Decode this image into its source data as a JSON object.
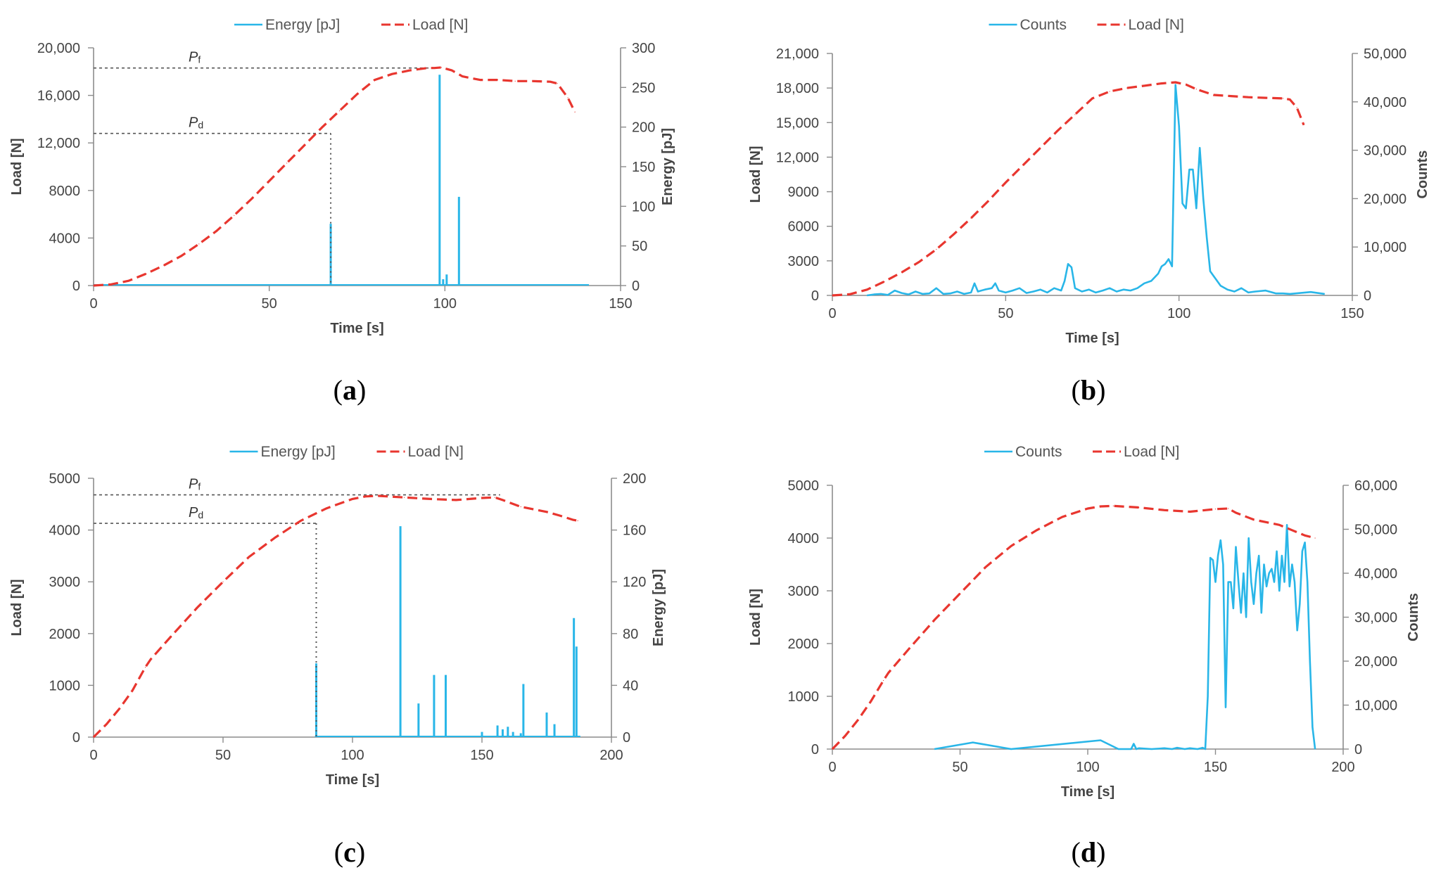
{
  "figure": {
    "colors": {
      "energy": "#29b6e8",
      "counts": "#29b6e8",
      "load": "#e8362f",
      "axis": "#8c8c8c",
      "ref": "#555555"
    }
  },
  "chart_data": [
    {
      "id": "a",
      "panel_label": "a",
      "type": "line",
      "xlabel": "Time [s]",
      "ylabel": "Load [N]",
      "y2label": "Energy [pJ]",
      "xlim": [
        0,
        150
      ],
      "ylim": [
        0,
        20000
      ],
      "y2lim": [
        0,
        300
      ],
      "xticks": [
        0,
        50,
        100,
        150
      ],
      "yticks": [
        0,
        4000,
        8000,
        12000,
        16000,
        20000
      ],
      "y2ticks": [
        0,
        50,
        100,
        150,
        200,
        250,
        300
      ],
      "xtick_labels": [
        "0",
        "50",
        "100",
        "150"
      ],
      "ytick_labels": [
        "0",
        "4000",
        "8000",
        "12,000",
        "16,000",
        "20,000"
      ],
      "y2tick_labels": [
        "0",
        "50",
        "100",
        "150",
        "200",
        "250",
        "300"
      ],
      "legend": [
        "Energy [pJ]",
        "Load [N]"
      ],
      "legend_position": "top-center",
      "secondary_kind": "spikes",
      "series": [
        {
          "name": "Energy [pJ]",
          "axis": "right",
          "style": "solid",
          "baseline": {
            "x0": 0,
            "x1": 141
          },
          "x": [
            67.5,
            98.5,
            99.5,
            100.5,
            104
          ],
          "values": [
            78,
            266,
            8,
            14,
            112
          ]
        },
        {
          "name": "Load [N]",
          "axis": "left",
          "style": "dashed",
          "x": [
            0,
            5,
            10,
            15,
            20,
            25,
            30,
            35,
            40,
            45,
            50,
            55,
            60,
            65,
            70,
            75,
            80,
            85,
            90,
            95,
            97,
            99,
            102,
            105,
            110,
            115,
            120,
            125,
            130,
            132,
            135,
            137
          ],
          "values": [
            0,
            100,
            400,
            1000,
            1700,
            2500,
            3500,
            4600,
            5900,
            7300,
            8800,
            10300,
            11800,
            13300,
            14700,
            16100,
            17300,
            17800,
            18100,
            18300,
            18300,
            18350,
            18100,
            17600,
            17300,
            17300,
            17200,
            17200,
            17150,
            17000,
            15800,
            14600
          ]
        }
      ],
      "annotations": [
        {
          "label": "P",
          "sub": "f",
          "y": 18300,
          "x_end": 98.5,
          "drop": false
        },
        {
          "label": "P",
          "sub": "d",
          "y": 12800,
          "x_end": 67.5,
          "drop": true
        }
      ]
    },
    {
      "id": "b",
      "panel_label": "b",
      "type": "line",
      "xlabel": "Time [s]",
      "ylabel": "Load [N]",
      "y2label": "Counts",
      "xlim": [
        0,
        150
      ],
      "ylim": [
        0,
        21000
      ],
      "y2lim": [
        0,
        50000
      ],
      "xticks": [
        0,
        50,
        100,
        150
      ],
      "yticks": [
        0,
        3000,
        6000,
        9000,
        12000,
        15000,
        18000,
        21000
      ],
      "y2ticks": [
        0,
        10000,
        20000,
        30000,
        40000,
        50000
      ],
      "xtick_labels": [
        "0",
        "50",
        "100",
        "150"
      ],
      "ytick_labels": [
        "0",
        "3000",
        "6000",
        "9000",
        "12,000",
        "15,000",
        "18,000",
        "21,000"
      ],
      "y2tick_labels": [
        "0",
        "10,000",
        "20,000",
        "30,000",
        "40,000",
        "50,000"
      ],
      "legend": [
        "Counts",
        "Load [N]"
      ],
      "legend_position": "top-center",
      "secondary_kind": "line",
      "series": [
        {
          "name": "Counts",
          "axis": "right",
          "style": "solid",
          "x": [
            10,
            12,
            14,
            16,
            18,
            20,
            22,
            24,
            26,
            28,
            30,
            32,
            34,
            36,
            38,
            40,
            41,
            42,
            44,
            46,
            47,
            48,
            50,
            52,
            54,
            56,
            58,
            60,
            62,
            64,
            66,
            67,
            68,
            69,
            70,
            72,
            74,
            76,
            78,
            80,
            82,
            84,
            86,
            88,
            90,
            92,
            94,
            95,
            96,
            97,
            98,
            99,
            100,
            101,
            102,
            103,
            104,
            105,
            106,
            107,
            108,
            109,
            110,
            112,
            114,
            116,
            118,
            120,
            122,
            125,
            128,
            130,
            132,
            135,
            138,
            142
          ],
          "values": [
            0,
            200,
            300,
            100,
            1000,
            500,
            200,
            800,
            300,
            400,
            1500,
            300,
            400,
            800,
            300,
            600,
            2500,
            800,
            1200,
            1500,
            2500,
            1000,
            600,
            1000,
            1500,
            500,
            800,
            1200,
            600,
            1500,
            1000,
            3000,
            6500,
            5800,
            1500,
            800,
            1200,
            600,
            1000,
            1500,
            800,
            1200,
            1000,
            1500,
            2500,
            3000,
            4500,
            6000,
            6500,
            7500,
            6000,
            43500,
            35000,
            19000,
            18000,
            26000,
            26000,
            18000,
            30500,
            20000,
            12000,
            5000,
            4000,
            2000,
            1200,
            800,
            1500,
            600,
            800,
            1000,
            400,
            400,
            300,
            500,
            700,
            300
          ]
        },
        {
          "name": "Load [N]",
          "axis": "left",
          "style": "dashed",
          "x": [
            0,
            5,
            10,
            15,
            20,
            25,
            30,
            35,
            40,
            45,
            50,
            55,
            60,
            65,
            70,
            75,
            80,
            85,
            90,
            95,
            99,
            102,
            105,
            110,
            115,
            120,
            125,
            130,
            132,
            134,
            136
          ],
          "values": [
            0,
            100,
            500,
            1200,
            2000,
            2900,
            4000,
            5300,
            6700,
            8200,
            9800,
            11300,
            12800,
            14300,
            15700,
            17100,
            17700,
            18000,
            18200,
            18400,
            18500,
            18300,
            17900,
            17400,
            17300,
            17200,
            17150,
            17100,
            17000,
            16300,
            14800
          ]
        }
      ]
    },
    {
      "id": "c",
      "panel_label": "c",
      "type": "line",
      "xlabel": "Time [s]",
      "ylabel": "Load [N]",
      "y2label": "Energy [pJ]",
      "xlim": [
        0,
        200
      ],
      "ylim": [
        0,
        5000
      ],
      "y2lim": [
        0,
        200
      ],
      "xticks": [
        0,
        50,
        100,
        150,
        200
      ],
      "yticks": [
        0,
        1000,
        2000,
        3000,
        4000,
        5000
      ],
      "y2ticks": [
        0,
        40,
        80,
        120,
        160,
        200
      ],
      "xtick_labels": [
        "0",
        "50",
        "100",
        "150",
        "200"
      ],
      "ytick_labels": [
        "0",
        "1000",
        "2000",
        "3000",
        "4000",
        "5000"
      ],
      "y2tick_labels": [
        "0",
        "40",
        "80",
        "120",
        "160",
        "200"
      ],
      "legend": [
        "Energy [pJ]",
        "Load [N]"
      ],
      "legend_position": "top-center",
      "secondary_kind": "spikes",
      "series": [
        {
          "name": "Energy [pJ]",
          "axis": "right",
          "style": "solid",
          "baseline": {
            "x0": 85.5,
            "x1": 188
          },
          "x": [
            86,
            118.5,
            125.5,
            131.5,
            136,
            150,
            156,
            158,
            160,
            162,
            165,
            166,
            175,
            178,
            185.5,
            186.5
          ],
          "values": [
            57,
            163,
            26,
            48,
            48,
            4,
            9,
            6,
            8,
            4,
            3,
            41,
            19,
            10,
            92,
            70
          ]
        },
        {
          "name": "Load [N]",
          "axis": "left",
          "style": "dashed",
          "x": [
            0,
            5,
            10,
            15,
            20,
            22,
            30,
            40,
            50,
            60,
            70,
            80,
            90,
            100,
            105,
            110,
            120,
            130,
            140,
            150,
            155,
            158,
            165,
            175,
            180,
            185,
            187
          ],
          "values": [
            0,
            250,
            550,
            900,
            1350,
            1500,
            1950,
            2500,
            3000,
            3480,
            3850,
            4180,
            4420,
            4600,
            4650,
            4660,
            4630,
            4600,
            4580,
            4620,
            4630,
            4580,
            4450,
            4350,
            4280,
            4200,
            4180
          ]
        }
      ],
      "annotations": [
        {
          "label": "P",
          "sub": "f",
          "y": 4680,
          "x_end": 157,
          "drop": false
        },
        {
          "label": "P",
          "sub": "d",
          "y": 4130,
          "x_end": 86,
          "drop": true
        }
      ]
    },
    {
      "id": "d",
      "panel_label": "d",
      "type": "line",
      "xlabel": "Time [s]",
      "ylabel": "Load [N]",
      "y2label": "Counts",
      "xlim": [
        0,
        200
      ],
      "ylim": [
        0,
        5000
      ],
      "y2lim": [
        0,
        60000
      ],
      "xticks": [
        0,
        50,
        100,
        150,
        200
      ],
      "yticks": [
        0,
        1000,
        2000,
        3000,
        4000,
        5000
      ],
      "y2ticks": [
        0,
        10000,
        20000,
        30000,
        40000,
        50000,
        60000
      ],
      "xtick_labels": [
        "0",
        "50",
        "100",
        "150",
        "200"
      ],
      "ytick_labels": [
        "0",
        "1000",
        "2000",
        "3000",
        "4000",
        "5000"
      ],
      "y2tick_labels": [
        "0",
        "10,000",
        "20,000",
        "30,000",
        "40,000",
        "50,000",
        "60,000"
      ],
      "legend": [
        "Counts",
        "Load [N]"
      ],
      "legend_position": "top-center",
      "secondary_kind": "line",
      "series": [
        {
          "name": "Counts",
          "axis": "right",
          "style": "solid",
          "x": [
            40,
            55,
            70,
            105,
            112,
            117,
            118,
            119,
            120,
            125,
            130,
            133,
            135,
            138,
            140,
            143,
            145,
            146,
            147,
            148,
            149,
            150,
            151,
            152,
            153,
            154,
            155,
            156,
            157,
            158,
            159,
            160,
            161,
            162,
            163,
            164,
            165,
            166,
            167,
            168,
            169,
            170,
            171,
            172,
            173,
            174,
            175,
            176,
            177,
            178,
            179,
            180,
            181,
            182,
            183,
            184,
            185,
            186,
            187,
            188,
            189
          ],
          "values": [
            0,
            1500,
            0,
            2000,
            0,
            0,
            1200,
            0,
            200,
            0,
            200,
            0,
            300,
            0,
            200,
            0,
            300,
            0,
            12000,
            43500,
            43000,
            38000,
            44000,
            47500,
            42000,
            9500,
            38000,
            38000,
            32000,
            46000,
            38000,
            31000,
            40000,
            30000,
            48000,
            38000,
            33000,
            40000,
            44000,
            31000,
            42000,
            37000,
            40000,
            41000,
            38000,
            45000,
            36000,
            44000,
            38000,
            51000,
            37000,
            42000,
            38000,
            27000,
            33000,
            45000,
            47000,
            38000,
            20000,
            5000,
            0
          ]
        },
        {
          "name": "Load [N]",
          "axis": "left",
          "style": "dashed",
          "x": [
            0,
            5,
            10,
            15,
            20,
            22,
            30,
            40,
            50,
            60,
            70,
            80,
            90,
            100,
            105,
            110,
            120,
            130,
            140,
            150,
            155,
            158,
            165,
            175,
            180,
            185,
            189
          ],
          "values": [
            0,
            250,
            550,
            900,
            1300,
            1450,
            1900,
            2450,
            2950,
            3450,
            3850,
            4150,
            4400,
            4560,
            4600,
            4610,
            4580,
            4530,
            4500,
            4550,
            4560,
            4480,
            4350,
            4250,
            4150,
            4050,
            4000
          ]
        }
      ]
    }
  ]
}
